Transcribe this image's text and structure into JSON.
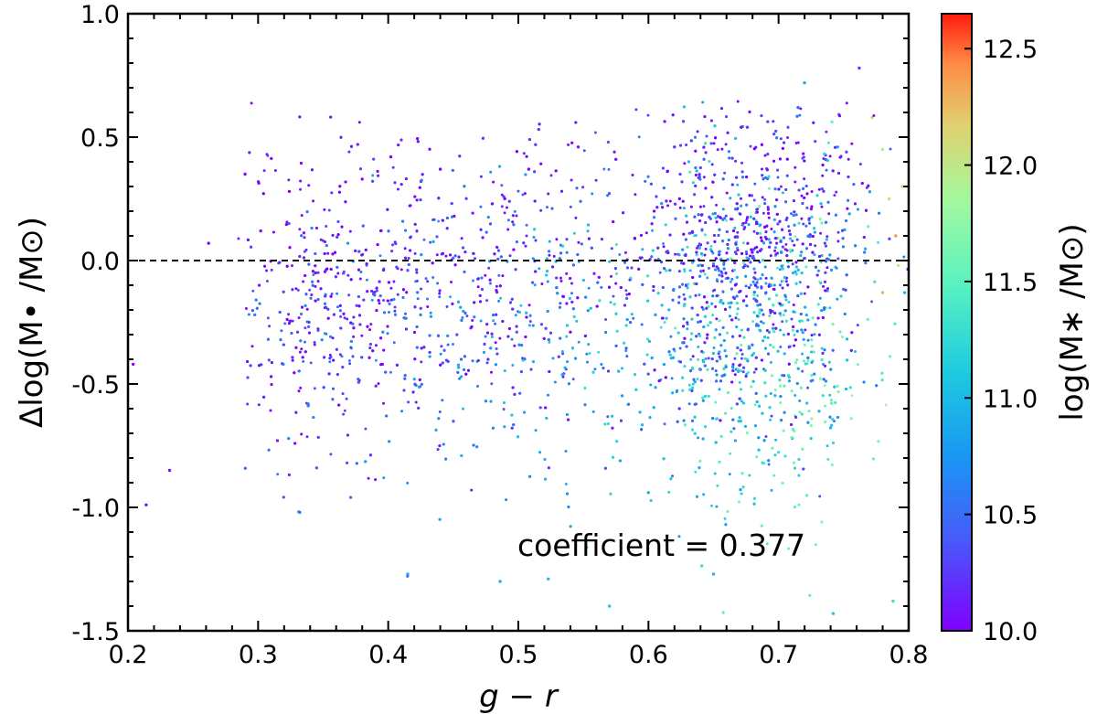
{
  "chart_data": {
    "type": "scatter",
    "xlabel": "g − r",
    "ylabel": "Δlog(M• /M⊙)",
    "xlim": [
      0.2,
      0.8
    ],
    "ylim": [
      -1.5,
      1.0
    ],
    "x_ticks": [
      "0.2",
      "0.3",
      "0.4",
      "0.5",
      "0.6",
      "0.7",
      "0.8"
    ],
    "y_ticks": [
      "-1.5",
      "-1.0",
      "-0.5",
      "0.0",
      "0.5",
      "1.0"
    ],
    "reference_line": {
      "y": 0.0,
      "style": "dashed"
    },
    "annotation": "coefficient = 0.377",
    "colorbar": {
      "label": "log(M∗ /M⊙)",
      "colormap": "rainbow",
      "range": [
        10.0,
        12.65
      ],
      "ticks": [
        "10.0",
        "10.5",
        "11.0",
        "11.5",
        "12.0",
        "12.5"
      ]
    },
    "grid": false,
    "points": [
      [
        0.204,
        -0.42,
        10.02
      ],
      [
        0.214,
        -0.99,
        10.06
      ],
      [
        0.232,
        -0.85,
        10.1
      ],
      [
        0.262,
        0.07,
        10.04
      ],
      [
        0.29,
        0.35,
        10.05
      ],
      [
        0.302,
        0.12,
        10.1
      ],
      [
        0.31,
        -0.47,
        10.08
      ],
      [
        0.324,
        0.28,
        10.03
      ],
      [
        0.332,
        -1.02,
        10.5
      ],
      [
        0.345,
        -0.84,
        10.45
      ],
      [
        0.352,
        -0.19,
        10.2
      ],
      [
        0.38,
        0.33,
        10.05
      ],
      [
        0.402,
        0.42,
        10.03
      ],
      [
        0.415,
        -1.27,
        10.9
      ],
      [
        0.44,
        0.37,
        10.05
      ],
      [
        0.48,
        0.23,
        10.05
      ],
      [
        0.486,
        -1.3,
        10.95
      ],
      [
        0.508,
        0.37,
        10.04
      ],
      [
        0.523,
        -1.29,
        11.0
      ],
      [
        0.546,
        0.46,
        10.05
      ],
      [
        0.57,
        -1.4,
        11.05
      ],
      [
        0.575,
        0.41,
        10.1
      ],
      [
        0.6,
        -0.94,
        10.9
      ],
      [
        0.62,
        0.46,
        10.2
      ],
      [
        0.65,
        -1.27,
        11.0
      ],
      [
        0.676,
        0.54,
        10.3
      ],
      [
        0.715,
        0.62,
        10.5
      ],
      [
        0.72,
        0.72,
        10.9
      ],
      [
        0.742,
        -1.43,
        11.1
      ],
      [
        0.762,
        0.78,
        10.2
      ],
      [
        0.772,
        0.58,
        12.2
      ],
      [
        0.78,
        0.45,
        12.0
      ],
      [
        0.788,
        -1.38,
        11.3
      ],
      [
        0.79,
        0.1,
        12.4
      ],
      [
        0.795,
        0.3,
        12.2
      ],
      [
        0.785,
        0.25,
        12.1
      ],
      [
        0.78,
        -0.13,
        12.3
      ],
      [
        0.792,
        -0.02,
        11.9
      ]
    ]
  }
}
